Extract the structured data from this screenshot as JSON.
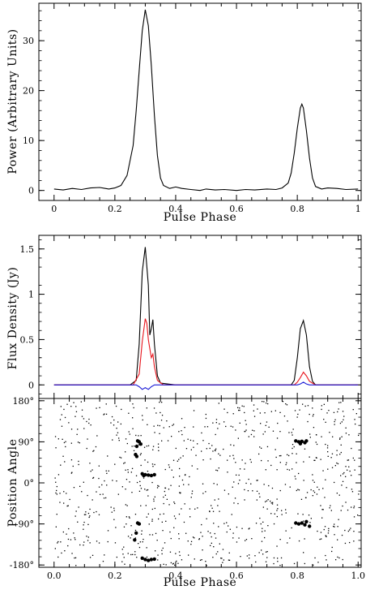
{
  "chart_data": [
    {
      "type": "line",
      "xlabel": "Pulse Phase",
      "ylabel": "Power (Arbitrary Units)",
      "xlim": [
        -0.05,
        1.01
      ],
      "ylim": [
        -2,
        37.5
      ],
      "xticks": [
        0,
        0.2,
        0.4,
        0.6,
        0.8,
        1
      ],
      "xtick_labels": [
        "0",
        "0.2",
        "0.4",
        "0.6",
        "0.8",
        "1"
      ],
      "yticks": [
        0,
        10,
        20,
        30
      ],
      "ytick_labels": [
        "0",
        "10",
        "20",
        "30"
      ],
      "series": [
        {
          "color": "#000000",
          "points": [
            [
              0.0,
              0.3
            ],
            [
              0.03,
              0.1
            ],
            [
              0.06,
              0.4
            ],
            [
              0.09,
              0.2
            ],
            [
              0.12,
              0.5
            ],
            [
              0.15,
              0.6
            ],
            [
              0.18,
              0.3
            ],
            [
              0.2,
              0.5
            ],
            [
              0.22,
              1.0
            ],
            [
              0.24,
              3.0
            ],
            [
              0.26,
              9.0
            ],
            [
              0.27,
              16.0
            ],
            [
              0.28,
              24.0
            ],
            [
              0.29,
              32.0
            ],
            [
              0.3,
              36.2
            ],
            [
              0.31,
              33.0
            ],
            [
              0.32,
              25.0
            ],
            [
              0.33,
              15.0
            ],
            [
              0.34,
              7.0
            ],
            [
              0.35,
              2.5
            ],
            [
              0.36,
              1.0
            ],
            [
              0.38,
              0.4
            ],
            [
              0.4,
              0.7
            ],
            [
              0.42,
              0.4
            ],
            [
              0.45,
              0.2
            ],
            [
              0.48,
              0.0
            ],
            [
              0.5,
              0.3
            ],
            [
              0.53,
              0.1
            ],
            [
              0.56,
              0.2
            ],
            [
              0.6,
              0.0
            ],
            [
              0.63,
              0.2
            ],
            [
              0.66,
              0.1
            ],
            [
              0.7,
              0.3
            ],
            [
              0.73,
              0.2
            ],
            [
              0.75,
              0.5
            ],
            [
              0.77,
              1.5
            ],
            [
              0.78,
              3.5
            ],
            [
              0.79,
              7.5
            ],
            [
              0.8,
              12.5
            ],
            [
              0.81,
              16.5
            ],
            [
              0.815,
              17.3
            ],
            [
              0.82,
              16.5
            ],
            [
              0.83,
              12.0
            ],
            [
              0.84,
              6.5
            ],
            [
              0.85,
              2.5
            ],
            [
              0.86,
              0.8
            ],
            [
              0.88,
              0.3
            ],
            [
              0.9,
              0.5
            ],
            [
              0.93,
              0.4
            ],
            [
              0.96,
              0.2
            ],
            [
              1.0,
              0.3
            ]
          ]
        }
      ]
    },
    {
      "type": "line",
      "xlabel": "",
      "ylabel": "Flux Density (Jy)",
      "xlim": [
        -0.05,
        1.01
      ],
      "ylim": [
        -0.15,
        1.65
      ],
      "yticks": [
        0,
        0.5,
        1,
        1.5
      ],
      "ytick_labels": [
        "0",
        "0.5",
        "1",
        "1.5"
      ],
      "series": [
        {
          "color": "#000000",
          "points": [
            [
              0.0,
              0.0
            ],
            [
              0.25,
              0.0
            ],
            [
              0.27,
              0.05
            ],
            [
              0.28,
              0.45
            ],
            [
              0.29,
              1.25
            ],
            [
              0.3,
              1.52
            ],
            [
              0.31,
              1.1
            ],
            [
              0.315,
              0.55
            ],
            [
              0.32,
              0.62
            ],
            [
              0.325,
              0.72
            ],
            [
              0.33,
              0.45
            ],
            [
              0.34,
              0.1
            ],
            [
              0.35,
              0.02
            ],
            [
              0.4,
              0.0
            ],
            [
              0.78,
              0.0
            ],
            [
              0.79,
              0.05
            ],
            [
              0.8,
              0.3
            ],
            [
              0.81,
              0.62
            ],
            [
              0.82,
              0.71
            ],
            [
              0.83,
              0.55
            ],
            [
              0.84,
              0.2
            ],
            [
              0.85,
              0.04
            ],
            [
              0.86,
              0.0
            ],
            [
              1.0,
              0.0
            ]
          ]
        },
        {
          "color": "#e8151d",
          "points": [
            [
              0.0,
              0.0
            ],
            [
              0.26,
              0.0
            ],
            [
              0.28,
              0.12
            ],
            [
              0.29,
              0.48
            ],
            [
              0.3,
              0.73
            ],
            [
              0.305,
              0.68
            ],
            [
              0.31,
              0.5
            ],
            [
              0.315,
              0.4
            ],
            [
              0.32,
              0.3
            ],
            [
              0.325,
              0.34
            ],
            [
              0.33,
              0.2
            ],
            [
              0.34,
              0.05
            ],
            [
              0.36,
              0.0
            ],
            [
              0.79,
              0.0
            ],
            [
              0.8,
              0.03
            ],
            [
              0.81,
              0.08
            ],
            [
              0.82,
              0.14
            ],
            [
              0.83,
              0.1
            ],
            [
              0.84,
              0.04
            ],
            [
              0.86,
              0.0
            ],
            [
              1.0,
              0.0
            ]
          ]
        },
        {
          "color": "#1c1cd6",
          "points": [
            [
              0.0,
              0.0
            ],
            [
              0.27,
              0.0
            ],
            [
              0.28,
              -0.02
            ],
            [
              0.29,
              -0.05
            ],
            [
              0.3,
              -0.03
            ],
            [
              0.31,
              -0.05
            ],
            [
              0.32,
              -0.02
            ],
            [
              0.33,
              0.0
            ],
            [
              0.8,
              0.0
            ],
            [
              0.81,
              0.01
            ],
            [
              0.82,
              0.03
            ],
            [
              0.83,
              0.01
            ],
            [
              0.84,
              0.0
            ],
            [
              1.0,
              0.0
            ]
          ]
        }
      ]
    },
    {
      "type": "scatter",
      "xlabel": "Pulse Phase",
      "ylabel": "Position Angle",
      "xlim": [
        -0.05,
        1.01
      ],
      "ylim": [
        -185,
        185
      ],
      "xticks": [
        0,
        0.2,
        0.4,
        0.6,
        0.8,
        1
      ],
      "xtick_labels": [
        "0.0",
        "0.2",
        "0.4",
        "0.6",
        "0.8",
        "1.0"
      ],
      "yticks": [
        -180,
        -90,
        0,
        90,
        180
      ],
      "ytick_labels": [
        "-180°",
        "-90°",
        "0°",
        "90°",
        "180°"
      ],
      "background_noise": "uniform random points across full phase and angle range",
      "series": [
        {
          "name": "",
          "color": "#000000",
          "points": [
            [
              0.275,
              92
            ],
            [
              0.28,
              90
            ],
            [
              0.272,
              80
            ],
            [
              0.268,
              62
            ],
            [
              0.272,
              58
            ],
            [
              0.285,
              85
            ],
            [
              0.275,
              -88
            ],
            [
              0.28,
              -90
            ],
            [
              0.27,
              -110
            ],
            [
              0.265,
              -125
            ],
            [
              0.29,
              20
            ],
            [
              0.295,
              16
            ],
            [
              0.3,
              18
            ],
            [
              0.31,
              17
            ],
            [
              0.32,
              16
            ],
            [
              0.33,
              18
            ],
            [
              0.29,
              -165
            ],
            [
              0.3,
              -168
            ],
            [
              0.31,
              -170
            ],
            [
              0.32,
              -168
            ],
            [
              0.33,
              -167
            ],
            [
              0.795,
              92
            ],
            [
              0.805,
              90
            ],
            [
              0.815,
              91
            ],
            [
              0.825,
              88
            ],
            [
              0.83,
              92
            ],
            [
              0.81,
              86
            ],
            [
              0.795,
              -88
            ],
            [
              0.805,
              -90
            ],
            [
              0.815,
              -88
            ],
            [
              0.825,
              -92
            ],
            [
              0.83,
              -85
            ],
            [
              0.84,
              -95
            ]
          ]
        }
      ]
    }
  ]
}
